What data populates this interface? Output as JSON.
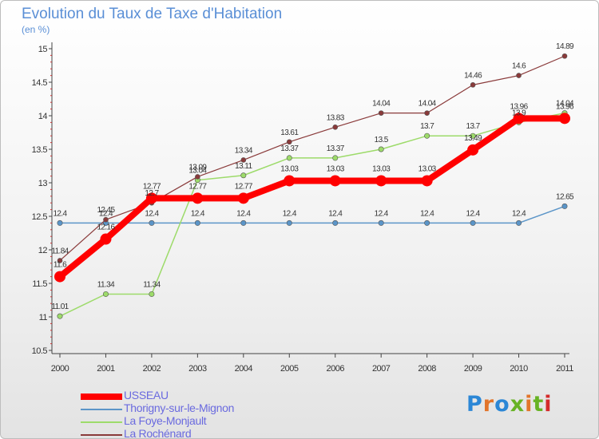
{
  "header": {
    "title": "Evolution du Taux de Taxe d'Habitation",
    "subtitle": "(en %)"
  },
  "logo": {
    "text": "Proxiti",
    "colors": [
      "#2c87d6",
      "#e2752b",
      "#2c87d6",
      "#67b324",
      "#e2752b",
      "#67b324",
      "#d42b2b"
    ]
  },
  "chart_data": {
    "type": "line",
    "title": "Evolution du Taux de Taxe d'Habitation",
    "ylabel": "(en %)",
    "xlabel": "",
    "x": [
      "2000",
      "2001",
      "2002",
      "2003",
      "2004",
      "2005",
      "2006",
      "2007",
      "2008",
      "2009",
      "2010",
      "2011"
    ],
    "ylim": [
      10.5,
      15
    ],
    "yticks": [
      "10.5",
      "11",
      "11.5",
      "12",
      "12.5",
      "13",
      "13.5",
      "14",
      "14.5",
      "15"
    ],
    "grid": false,
    "legend": "bottom-left",
    "series": [
      {
        "name": "USSEAU",
        "color": "#ff0000",
        "width": 8,
        "marker": 7,
        "values": [
          11.6,
          12.16,
          12.77,
          12.77,
          12.77,
          13.03,
          13.03,
          13.03,
          13.03,
          13.49,
          13.96,
          13.96
        ],
        "labels": [
          "11.6",
          "12.16",
          "12.77",
          "12.77",
          "12.77",
          "13.03",
          "13.03",
          "13.03",
          "13.03",
          "13.49",
          "13.96",
          "13.96"
        ]
      },
      {
        "name": "Thorigny-sur-le-Mignon",
        "color": "#5b95c8",
        "width": 1.5,
        "marker": 3.2,
        "values": [
          12.4,
          12.4,
          12.4,
          12.4,
          12.4,
          12.4,
          12.4,
          12.4,
          12.4,
          12.4,
          12.4,
          12.65
        ],
        "labels": [
          "12.4",
          "12.4",
          "12.4",
          "12.4",
          "12.4",
          "12.4",
          "12.4",
          "12.4",
          "12.4",
          "12.4",
          "12.4",
          "12.65"
        ]
      },
      {
        "name": "La Foye-Monjault",
        "color": "#9ddb6a",
        "width": 1.5,
        "marker": 3.2,
        "values": [
          11.01,
          11.34,
          11.34,
          13.04,
          13.11,
          13.37,
          13.37,
          13.5,
          13.7,
          13.7,
          13.9,
          14.04
        ],
        "labels": [
          "11.01",
          "11.34",
          "11.34",
          "13.04",
          "13.11",
          "13.37",
          "13.37",
          "13.5",
          "13.7",
          "13.7",
          "13.9",
          "14.04"
        ]
      },
      {
        "name": "La Rochénard",
        "color": "#8a3a3a",
        "width": 1.2,
        "marker": 3,
        "values": [
          11.84,
          12.45,
          12.7,
          13.09,
          13.34,
          13.61,
          13.83,
          14.04,
          14.04,
          14.46,
          14.6,
          14.89
        ],
        "labels": [
          "11.84",
          "12.45",
          "12.7",
          "13.09",
          "13.34",
          "13.61",
          "13.83",
          "14.04",
          "14.04",
          "14.46",
          "14.6",
          "14.89"
        ]
      }
    ]
  }
}
